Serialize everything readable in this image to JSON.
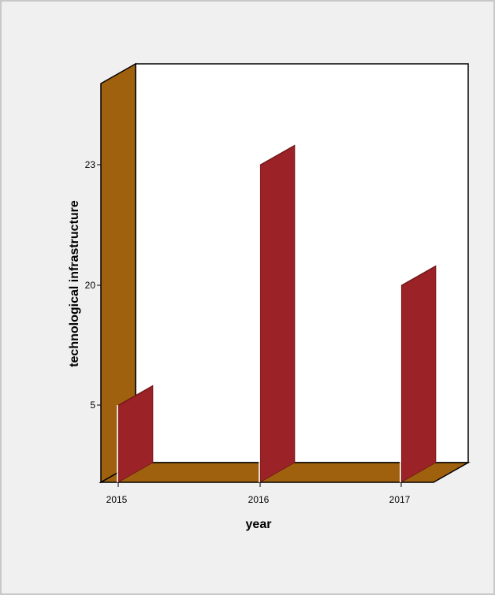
{
  "chart_data": {
    "type": "bar",
    "categories": [
      "2015",
      "2016",
      "2017"
    ],
    "values": [
      5,
      23,
      20
    ],
    "y_ticks": [
      {
        "value": 5,
        "label": "5"
      },
      {
        "value": 20,
        "label": "20"
      },
      {
        "value": 23,
        "label": "23"
      }
    ],
    "xlabel": "year",
    "ylabel": "technological infrastructure",
    "style": "3d",
    "grid": false,
    "legend": false,
    "colors": {
      "bar": "#9b2226",
      "bar_dark": "#7a1a1d",
      "walls": "#a0610f",
      "plot_background": "#ffffff"
    }
  }
}
